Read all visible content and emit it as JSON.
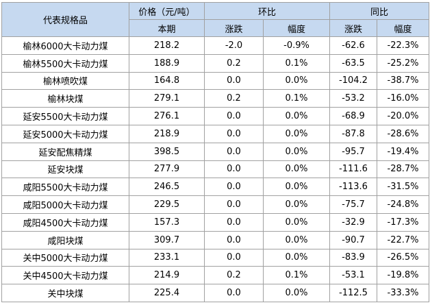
{
  "table": {
    "header": {
      "name": "代表规格品",
      "price": "价格（元/吨）",
      "current": "本期",
      "mom": "环比",
      "yoy": "同比",
      "mom_change": "涨跌",
      "mom_pct": "幅度",
      "yoy_change": "涨跌",
      "yoy_pct": "幅度"
    },
    "rows": [
      [
        "榆林6000大卡动力煤",
        "218.2",
        "-2.0",
        "-0.9%",
        "-62.6",
        "-22.3%"
      ],
      [
        "榆林5500大卡动力煤",
        "188.9",
        "0.2",
        "0.1%",
        "-63.5",
        "-25.2%"
      ],
      [
        "榆林喷吹煤",
        "164.8",
        "0.0",
        "0.0%",
        "-104.2",
        "-38.7%"
      ],
      [
        "榆林块煤",
        "279.1",
        "0.2",
        "0.1%",
        "-53.2",
        "-16.0%"
      ],
      [
        "延安5500大卡动力煤",
        "276.1",
        "0.0",
        "0.0%",
        "-68.9",
        "-20.0%"
      ],
      [
        "延安5000大卡动力煤",
        "218.9",
        "0.0",
        "0.0%",
        "-87.8",
        "-28.6%"
      ],
      [
        "延安配焦精煤",
        "398.5",
        "0.0",
        "0.0%",
        "-95.7",
        "-19.4%"
      ],
      [
        "延安块煤",
        "277.9",
        "0.0",
        "0.0%",
        "-111.6",
        "-28.7%"
      ],
      [
        "咸阳5500大卡动力煤",
        "246.5",
        "0.0",
        "0.0%",
        "-113.6",
        "-31.5%"
      ],
      [
        "咸阳5000大卡动力煤",
        "229.5",
        "0.0",
        "0.0%",
        "-75.7",
        "-24.8%"
      ],
      [
        "咸阳4500大卡动力煤",
        "157.3",
        "0.0",
        "0.0%",
        "-32.9",
        "-17.3%"
      ],
      [
        "咸阳块煤",
        "309.7",
        "0.0",
        "0.0%",
        "-90.7",
        "-22.7%"
      ],
      [
        "关中5000大卡动力煤",
        "233.1",
        "0.0",
        "0.0%",
        "-83.9",
        "-26.5%"
      ],
      [
        "关中4500大卡动力煤",
        "214.9",
        "0.2",
        "0.1%",
        "-53.1",
        "-19.8%"
      ],
      [
        "关中块煤",
        "225.4",
        "0.0",
        "0.0%",
        "-112.5",
        "-33.3%"
      ]
    ]
  }
}
